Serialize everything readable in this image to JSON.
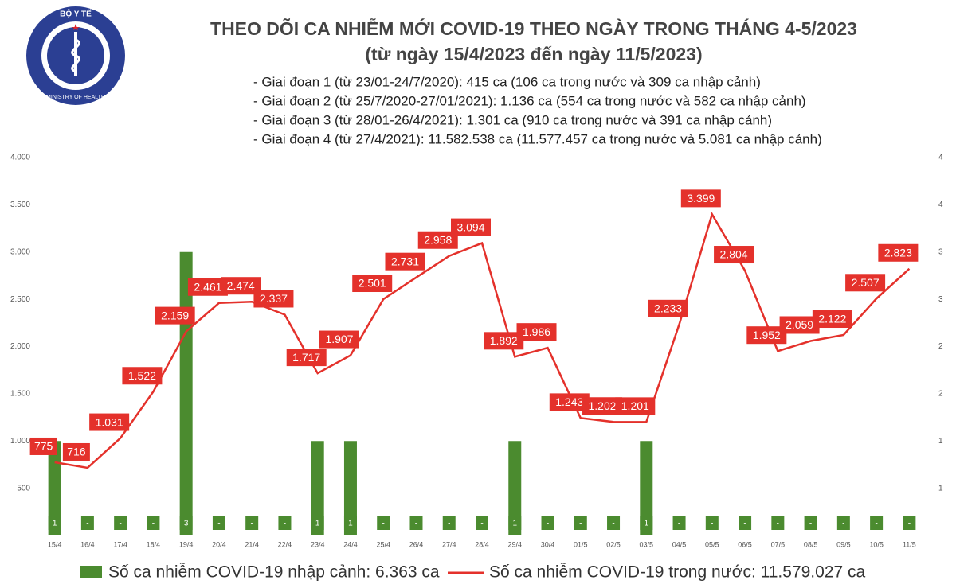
{
  "logo": {
    "top": "BỘ Y TẾ",
    "bottom": "MINISTRY OF HEALTH"
  },
  "chart_data": {
    "type": "bar-line",
    "title": "THEO DÕI CA NHIỄM MỚI COVID-19 THEO NGÀY TRONG THÁNG 4-5/2023",
    "subtitle": "(từ ngày 15/4/2023 đến ngày 11/5/2023)",
    "notes": [
      "- Giai đoạn 1 (từ 23/01-24/7/2020): 415 ca (106 ca trong nước và 309 ca nhập cảnh)",
      "- Giai đoạn 2 (từ 25/7/2020-27/01/2021): 1.136 ca (554 ca trong nước và 582 ca nhập cảnh)",
      "- Giai đoạn 3 (từ 28/01-26/4/2021): 1.301 ca (910 ca trong nước và 391 ca nhập cảnh)",
      "- Giai đoạn 4 (từ 27/4/2021): 11.582.538 ca (11.577.457 ca trong nước và 5.081 ca nhập cảnh)"
    ],
    "categories": [
      "15/4",
      "16/4",
      "17/4",
      "18/4",
      "19/4",
      "20/4",
      "21/4",
      "22/4",
      "23/4",
      "24/4",
      "25/4",
      "26/4",
      "27/4",
      "28/4",
      "29/4",
      "30/4",
      "01/5",
      "02/5",
      "03/5",
      "04/5",
      "05/5",
      "06/5",
      "07/5",
      "08/5",
      "09/5",
      "10/5",
      "11/5"
    ],
    "series": [
      {
        "name": "Số ca nhiễm COVID-19 nhập cảnh: 6.363 ca",
        "color": "#4b8b2f",
        "axis": "y2",
        "kind": "bar",
        "values": [
          1,
          0,
          0,
          0,
          3,
          0,
          0,
          0,
          1,
          1,
          0,
          0,
          0,
          0,
          1,
          0,
          0,
          0,
          1,
          0,
          0,
          0,
          0,
          0,
          0,
          0,
          0
        ],
        "value_labels": [
          "1",
          "-",
          "-",
          "-",
          "3",
          "-",
          "-",
          "-",
          "1",
          "1",
          "-",
          "-",
          "-",
          "-",
          "1",
          "-",
          "-",
          "-",
          "1",
          "-",
          "-",
          "-",
          "-",
          "-",
          "-",
          "-",
          "-"
        ]
      },
      {
        "name": "Số ca nhiễm COVID-19 trong nước: 11.579.027 ca",
        "color": "#e4312b",
        "axis": "y",
        "kind": "line",
        "values": [
          775,
          716,
          1031,
          1522,
          2159,
          2461,
          2474,
          2337,
          1717,
          1907,
          2501,
          2731,
          2958,
          3094,
          1892,
          1986,
          1243,
          1202,
          1201,
          2233,
          3399,
          2804,
          1952,
          2059,
          2122,
          2507,
          2823
        ],
        "value_labels": [
          "775",
          "716",
          "1.031",
          "1.522",
          "2.159",
          "2.461",
          "2.474",
          "2.337",
          "1.717",
          "1.907",
          "2.501",
          "2.731",
          "2.958",
          "3.094",
          "1.892",
          "1.986",
          "1.243",
          "1.202",
          "1.201",
          "2.233",
          "3.399",
          "2.804",
          "1.952",
          "2.059",
          "2.122",
          "2.507",
          "2.823"
        ]
      }
    ],
    "ylim": [
      0,
      4000
    ],
    "yticks": [
      {
        "value": 0,
        "label": "-"
      },
      500,
      {
        "value": 1000,
        "label": "1.000"
      },
      {
        "value": 1500,
        "label": "1.500"
      },
      {
        "value": 2000,
        "label": "2.000"
      },
      {
        "value": 2500,
        "label": "2.500"
      },
      {
        "value": 3000,
        "label": "3.000"
      },
      {
        "value": 3500,
        "label": "3.500"
      },
      {
        "value": 4000,
        "label": "4.000"
      }
    ],
    "y2lim": [
      0,
      4
    ],
    "y2ticks": [
      {
        "value": 0,
        "label": "-"
      },
      {
        "value": 0.5,
        "label": "1"
      },
      1,
      {
        "value": 1.5,
        "label": "2"
      },
      2,
      {
        "value": 2.5,
        "label": "3"
      },
      3,
      {
        "value": 3.5,
        "label": "4"
      },
      4
    ],
    "grid": false
  }
}
